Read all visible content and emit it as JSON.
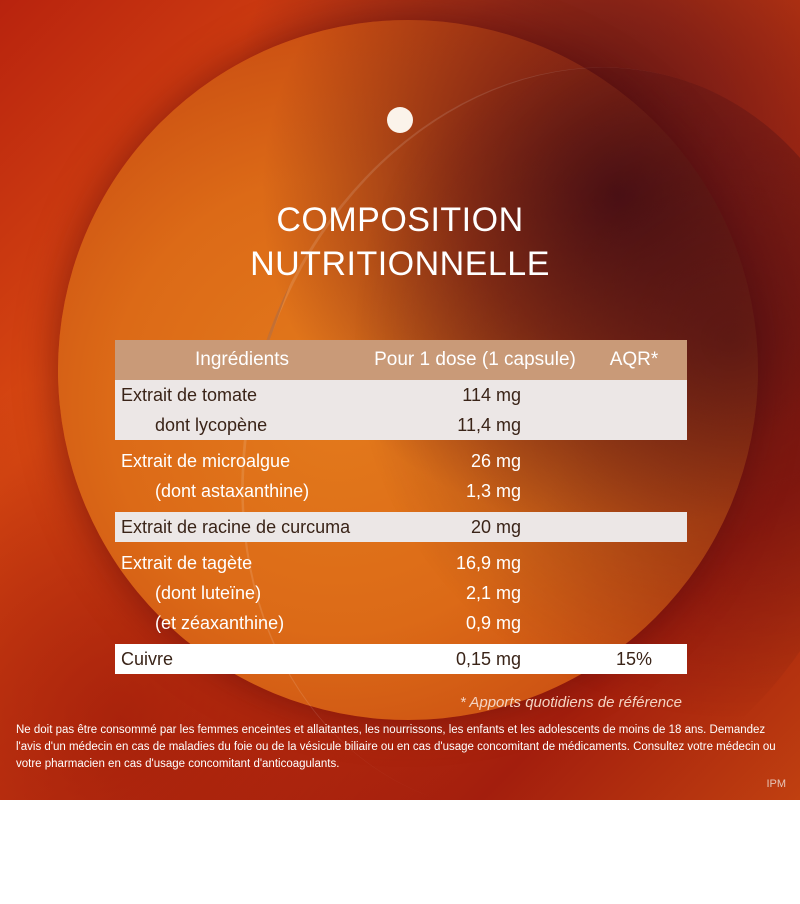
{
  "title_line1": "COMPOSITION",
  "title_line2": "NUTRITIONNELLE",
  "table": {
    "headers": [
      "Ingrédients",
      "Pour 1 dose (1 capsule)",
      "AQR*"
    ],
    "rows": [
      {
        "name": "Extrait de tomate",
        "value": "114 mg",
        "aqr": ""
      },
      {
        "name": "dont lycopène",
        "value": "11,4 mg",
        "aqr": ""
      },
      {
        "name": "Extrait de microalgue",
        "value": "26 mg",
        "aqr": ""
      },
      {
        "name": "(dont astaxanthine)",
        "value": "1,3 mg",
        "aqr": ""
      },
      {
        "name": "Extrait de racine de curcuma",
        "value": "20 mg",
        "aqr": ""
      },
      {
        "name": "Extrait de tagète",
        "value": "16,9 mg",
        "aqr": ""
      },
      {
        "name": "(dont luteïne)",
        "value": "2,1 mg",
        "aqr": ""
      },
      {
        "name": "(et zéaxanthine)",
        "value": "0,9 mg",
        "aqr": ""
      },
      {
        "name": "Cuivre",
        "value": "0,15 mg",
        "aqr": "15%"
      }
    ]
  },
  "footnote": "* Apports quotidiens de référence",
  "disclaimer": "Ne doit pas être consommé par les femmes enceintes et allaitantes, les nourrissons, les enfants et les adolescents de moins de 18 ans. Demandez l'avis d'un médecin en cas de maladies du foie ou de la vésicule biliaire ou en cas d'usage concomitant de médicaments. Consultez votre médecin ou votre pharmacien en cas d'usage concomitant d'anticoagulants.",
  "logo_text": "IPM",
  "colors": {
    "accent": "#e07018",
    "header": "#c99a78",
    "row_light": "#ece7e6"
  }
}
